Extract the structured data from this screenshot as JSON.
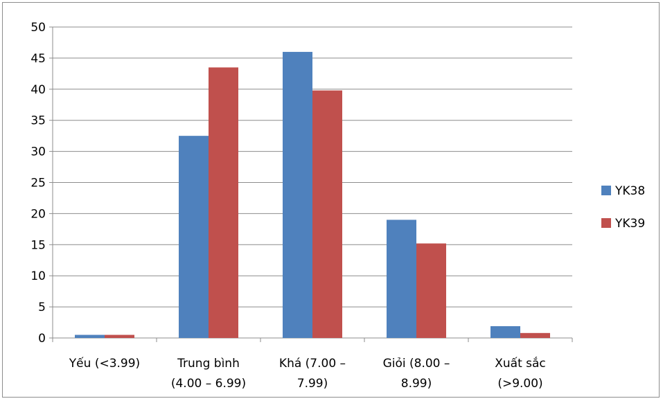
{
  "chart_data": {
    "type": "bar",
    "title": "",
    "xlabel": "",
    "ylabel": "",
    "ylim": [
      0,
      50
    ],
    "yticks": [
      "0",
      "5",
      "10",
      "15",
      "20",
      "25",
      "30",
      "35",
      "40",
      "45",
      "50"
    ],
    "grid": true,
    "legend_position": "right",
    "categories": [
      [
        "Yếu (<3.99)"
      ],
      [
        "Trung bình",
        "(4.00 – 6.99)"
      ],
      [
        "Khá (7.00 –",
        "7.99)"
      ],
      [
        "Giỏi (8.00 –",
        "8.99)"
      ],
      [
        "Xuất sắc",
        "(>9.00)"
      ]
    ],
    "series": [
      {
        "name": "YK38",
        "color": "#4F81BD",
        "values": [
          0.5,
          32.5,
          46.0,
          19.0,
          1.9
        ]
      },
      {
        "name": "YK39",
        "color": "#C0504D",
        "values": [
          0.5,
          43.5,
          39.8,
          15.2,
          0.8
        ]
      }
    ]
  }
}
